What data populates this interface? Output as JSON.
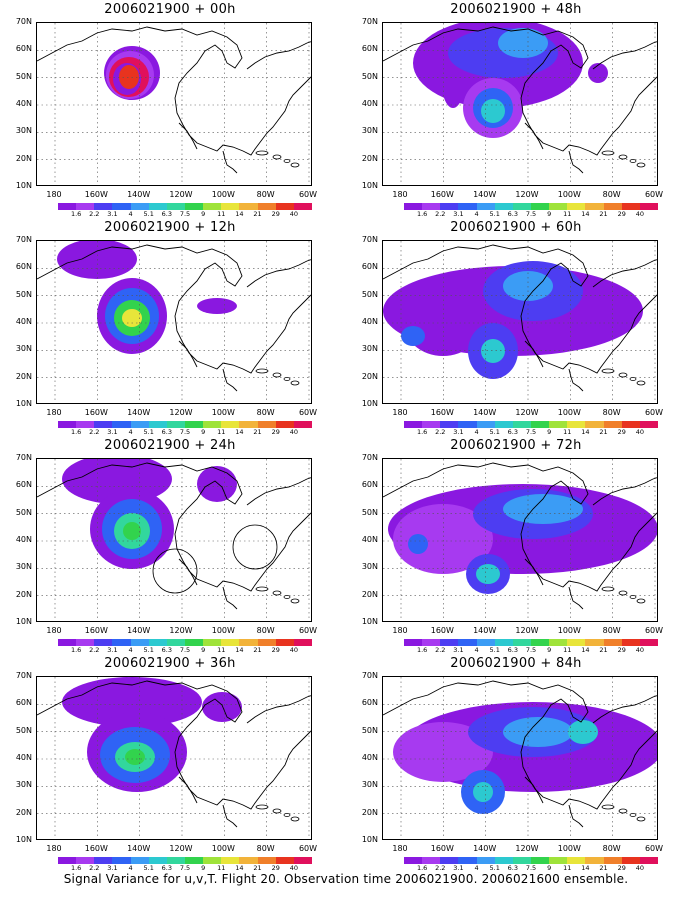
{
  "lat_labels": [
    "70N",
    "60N",
    "50N",
    "40N",
    "30N",
    "20N",
    "10N"
  ],
  "lon_labels": [
    "180",
    "160W",
    "140W",
    "120W",
    "100W",
    "80W",
    "60W"
  ],
  "colorbar": {
    "labels": [
      "1.6",
      "2.2",
      "3.1",
      "4",
      "5.1",
      "6.3",
      "7.5",
      "9",
      "11",
      "14",
      "21",
      "29",
      "40"
    ],
    "colors": [
      "#8a18e0",
      "#a73af0",
      "#4d3df2",
      "#2f63f5",
      "#3b9cf5",
      "#2cc9d0",
      "#32d79d",
      "#32d34d",
      "#9fe33a",
      "#e8e53a",
      "#f2b33a",
      "#f07f2a",
      "#e8331f",
      "#e0105c"
    ]
  },
  "panels": [
    {
      "title": "2006021900 + 00h",
      "lead": "00h"
    },
    {
      "title": "2006021900 + 48h",
      "lead": "48h"
    },
    {
      "title": "2006021900 + 12h",
      "lead": "12h"
    },
    {
      "title": "2006021900 + 60h",
      "lead": "60h"
    },
    {
      "title": "2006021900 + 24h",
      "lead": "24h"
    },
    {
      "title": "2006021900 + 72h",
      "lead": "72h"
    },
    {
      "title": "2006021900 + 36h",
      "lead": "36h"
    },
    {
      "title": "2006021900 + 84h",
      "lead": "84h"
    }
  ],
  "caption": "Signal Variance for u,v,T. Flight 20. Observation time 2006021900. 2006021600 ensemble."
}
